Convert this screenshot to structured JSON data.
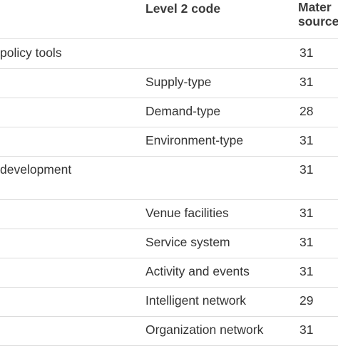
{
  "table": {
    "header": {
      "level2": "Level 2 code",
      "materials": [
        "Mater",
        "source"
      ]
    },
    "rows": [
      {
        "level1": "policy tools",
        "count": 31
      },
      {
        "level2": "Supply-type",
        "count": 31
      },
      {
        "level2": "Demand-type",
        "count": 28
      },
      {
        "level2": "Environment-type",
        "count": 31
      },
      {
        "level1": "development",
        "count": 31
      },
      {
        "level2": "Venue facilities",
        "count": 31
      },
      {
        "level2": "Service system",
        "count": 31
      },
      {
        "level2": "Activity and events",
        "count": 31
      },
      {
        "level2": "Intelligent network",
        "count": 29
      },
      {
        "level2": "Organization network",
        "count": 31
      }
    ]
  }
}
